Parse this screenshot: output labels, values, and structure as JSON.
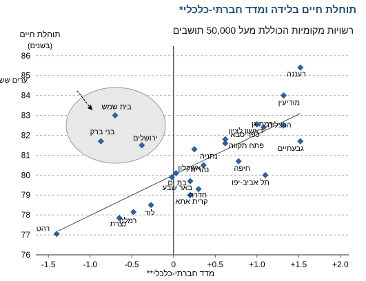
{
  "chart_data": {
    "type": "scatter",
    "title": "תוחלת חיים בלידה ומדד חברתי-כלכלי*",
    "subtitle": "רשויות מקומיות הכוללת מעל 50,000 תושבים",
    "ylabel": "תוחלת חיים",
    "ylabel_unit": "(בשנים)",
    "xlabel": "מדד חברתי-כלכלי**",
    "xlim": [
      -1.65,
      2.1
    ],
    "ylim": [
      76,
      86.2
    ],
    "xticks": [
      {
        "value": -1.5,
        "label": "-1.5"
      },
      {
        "value": -1.0,
        "label": "-1.0"
      },
      {
        "value": -0.5,
        "label": "-0.5"
      },
      {
        "value": 0,
        "label": "0"
      },
      {
        "value": 0.5,
        "label": "+0.5"
      },
      {
        "value": 1.0,
        "label": "+1.0"
      },
      {
        "value": 1.5,
        "label": "+1.5"
      },
      {
        "value": 2.0,
        "label": "+2.0"
      }
    ],
    "yticks": [
      76,
      77,
      78,
      79,
      80,
      81,
      82,
      83,
      84,
      85,
      86
    ],
    "grid": "horizontal-dashed",
    "marker_color": "#2e5f9e",
    "points": [
      {
        "label": "רעננה",
        "x": 1.52,
        "y": 85.4
      },
      {
        "label": "מודיעין",
        "x": 1.32,
        "y": 84.0
      },
      {
        "label": "הרצליה",
        "x": 1.32,
        "y": 82.5
      },
      {
        "label": "גבעתיים",
        "x": 1.52,
        "y": 81.7
      },
      {
        "label": "כפר סבא",
        "x": 1.08,
        "y": 82.4
      },
      {
        "label": "רמת גן",
        "x": 1.0,
        "y": 82.55
      },
      {
        "label": "ראשון לציון",
        "x": 0.62,
        "y": 81.8
      },
      {
        "label": "פתח תקווה",
        "x": 0.62,
        "y": 81.6
      },
      {
        "label": "נתניה",
        "x": 0.25,
        "y": 81.3
      },
      {
        "label": "חיפה",
        "x": 0.78,
        "y": 80.7
      },
      {
        "label": "נהריה",
        "x": 0.36,
        "y": 80.5
      },
      {
        "label": "תל אביב-יפו",
        "x": 1.1,
        "y": 80.0
      },
      {
        "label": "אשקלון",
        "x": 0.03,
        "y": 80.1
      },
      {
        "label": "בת ים",
        "x": -0.02,
        "y": 79.9
      },
      {
        "label": "באר שבע",
        "x": 0.2,
        "y": 79.7
      },
      {
        "label": "חדרה",
        "x": 0.3,
        "y": 79.3
      },
      {
        "label": "קרית אתא",
        "x": 0.2,
        "y": 79.0
      },
      {
        "label": "לוד",
        "x": -0.27,
        "y": 78.5
      },
      {
        "label": "רמלה",
        "x": -0.48,
        "y": 78.15
      },
      {
        "label": "נצרת",
        "x": -0.65,
        "y": 77.85
      },
      {
        "label": "רהט",
        "x": -1.4,
        "y": 77.05
      },
      {
        "label": "בית שמש",
        "x": -0.7,
        "y": 83.0
      },
      {
        "label": "ירושלים",
        "x": -0.38,
        "y": 81.5
      },
      {
        "label": "בני ברק",
        "x": -0.87,
        "y": 81.7
      }
    ],
    "trendline": {
      "x": [
        -1.38,
        1.52
      ],
      "y": [
        77.2,
        83.1
      ]
    },
    "annotation": {
      "text": "ערים ששיעור החרדים בהן גבוה"
    }
  }
}
